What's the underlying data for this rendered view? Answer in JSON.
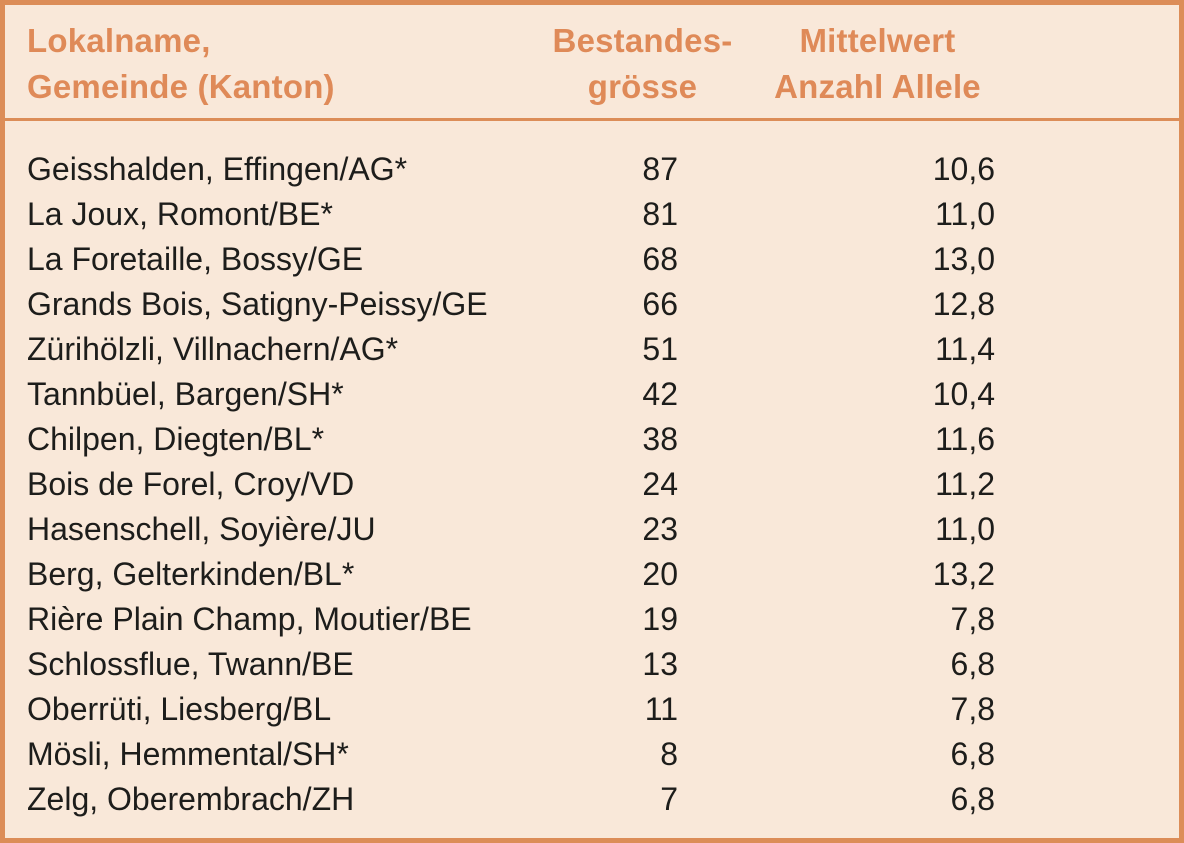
{
  "colors": {
    "background": "#f9e8d9",
    "border": "#dc8d58",
    "header_text": "#df8a58",
    "body_text": "#1d1d1b"
  },
  "table": {
    "header": {
      "col1_line1": "Lokalname,",
      "col1_line2": "Gemeinde (Kanton)",
      "col2_line1": "Bestandes-",
      "col2_line2": "grösse",
      "col3_line1": "Mittelwert",
      "col3_line2": "Anzahl Allele"
    }
  },
  "chart_data": {
    "type": "table",
    "title": "",
    "columns": [
      "Lokalname, Gemeinde (Kanton)",
      "Bestandesgrösse",
      "Mittelwert Anzahl Allele"
    ],
    "rows": [
      [
        "Geisshalden, Effingen/AG*",
        87,
        "10,6"
      ],
      [
        "La Joux, Romont/BE*",
        81,
        "11,0"
      ],
      [
        "La Foretaille, Bossy/GE",
        68,
        "13,0"
      ],
      [
        "Grands Bois, Satigny-Peissy/GE",
        66,
        "12,8"
      ],
      [
        "Zürihölzli, Villnachern/AG*",
        51,
        "11,4"
      ],
      [
        "Tannbüel, Bargen/SH*",
        42,
        "10,4"
      ],
      [
        "Chilpen, Diegten/BL*",
        38,
        "11,6"
      ],
      [
        "Bois de Forel, Croy/VD",
        24,
        "11,2"
      ],
      [
        "Hasenschell, Soyière/JU",
        23,
        "11,0"
      ],
      [
        "Berg, Gelterkinden/BL*",
        20,
        "13,2"
      ],
      [
        "Rière Plain Champ, Moutier/BE",
        19,
        "7,8"
      ],
      [
        "Schlossflue, Twann/BE",
        13,
        "6,8"
      ],
      [
        "Oberrüti, Liesberg/BL",
        11,
        "7,8"
      ],
      [
        "Mösli, Hemmental/SH*",
        8,
        "6,8"
      ],
      [
        "Zelg, Oberembrach/ZH",
        7,
        "6,8"
      ]
    ]
  }
}
